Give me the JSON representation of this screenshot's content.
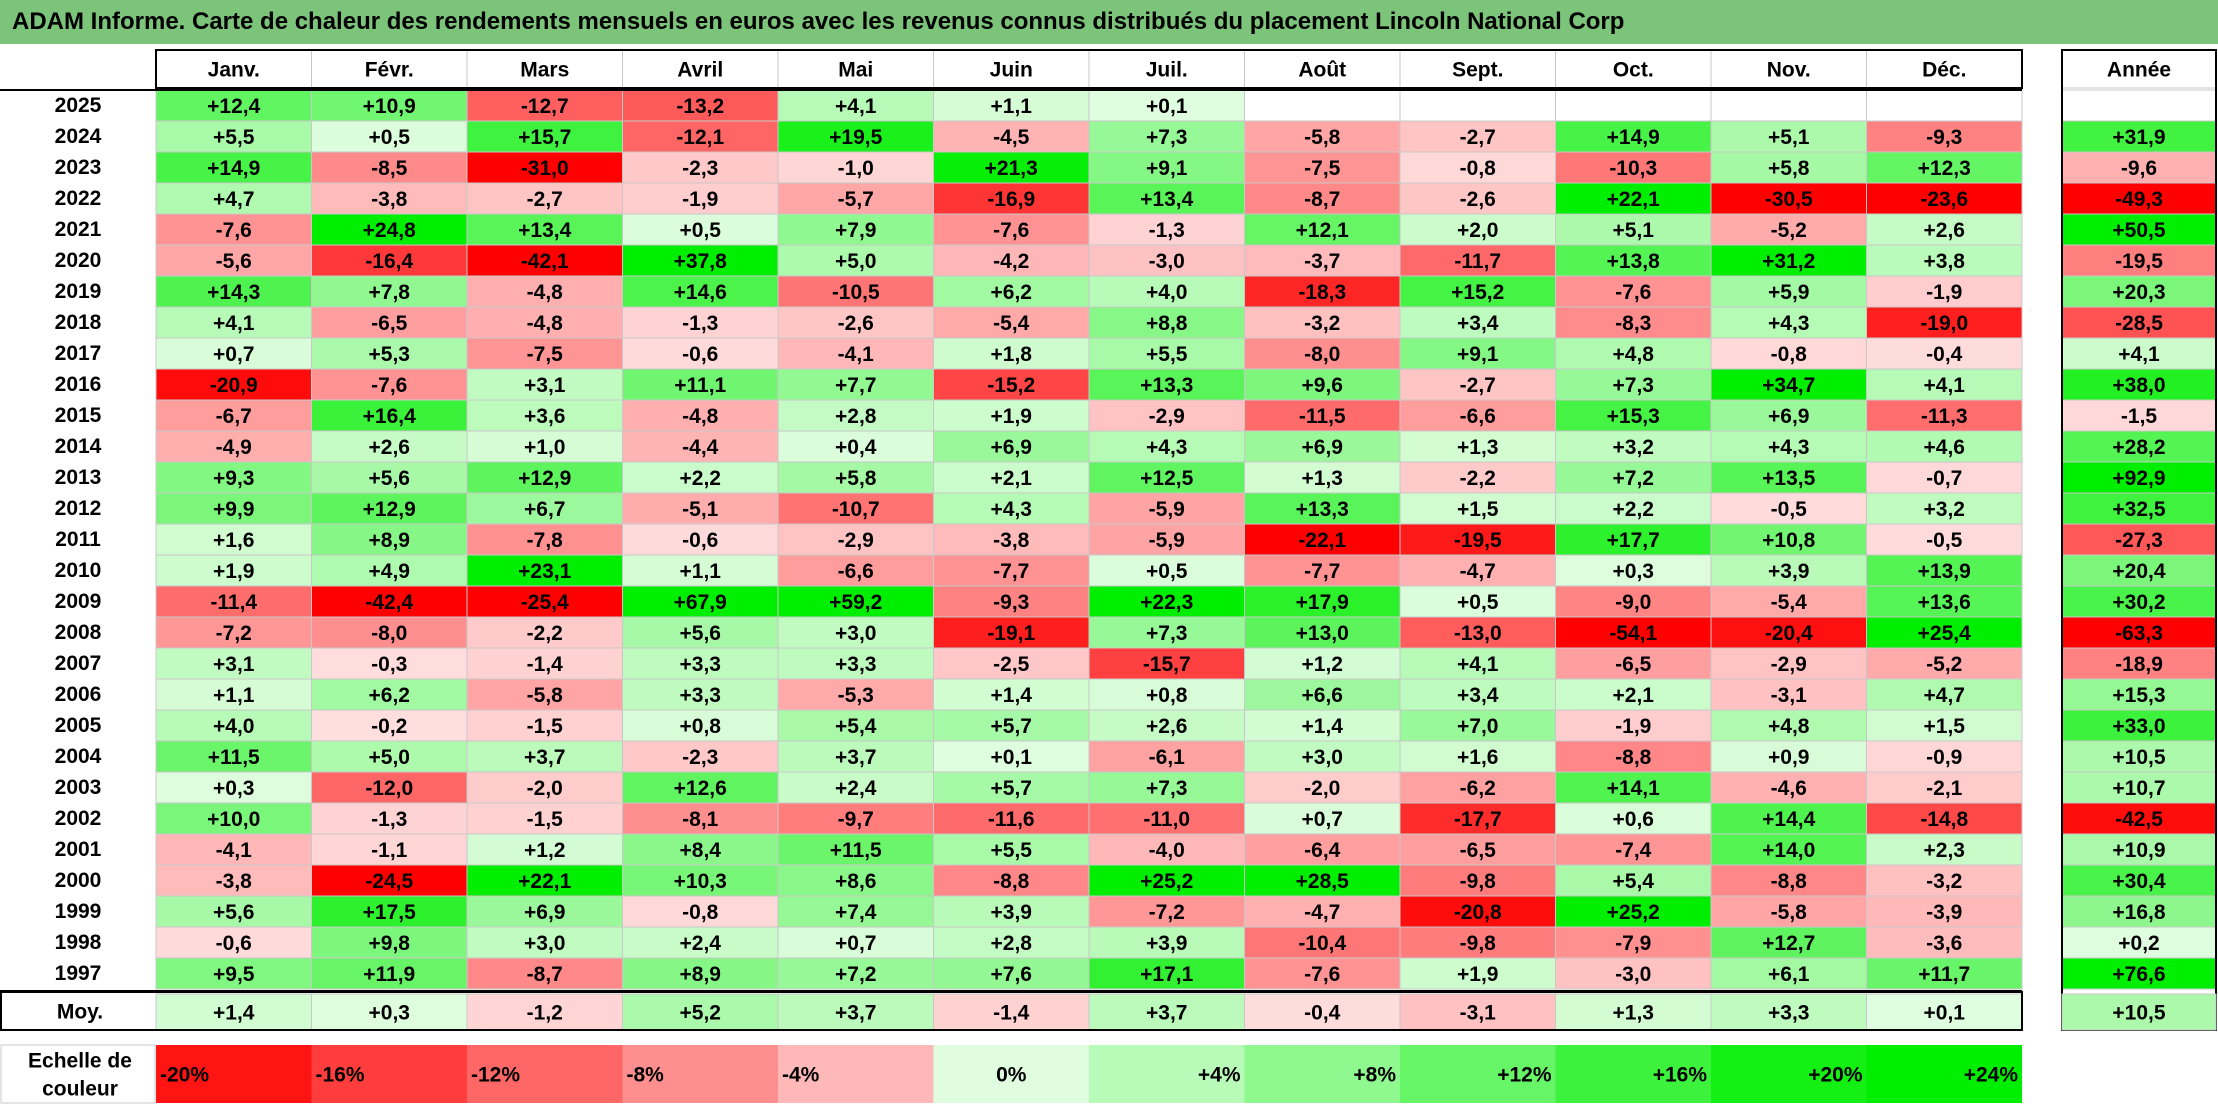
{
  "title": "ADAM Informe. Carte de chaleur des rendements mensuels en euros avec les revenus connus distribués du placement Lincoln National Corp",
  "chart_data": {
    "type": "heatmap",
    "months": [
      "Janv.",
      "Févr.",
      "Mars",
      "Avril",
      "Mai",
      "Juin",
      "Juil.",
      "Août",
      "Sept.",
      "Oct.",
      "Nov.",
      "Déc."
    ],
    "annual_header": "Année",
    "rows": [
      {
        "year": "2025",
        "values": [
          "+12,4",
          "+10,9",
          "-12,7",
          "-13,2",
          "+4,1",
          "+1,1",
          "+0,1",
          "",
          "",
          "",
          "",
          ""
        ],
        "annual": ""
      },
      {
        "year": "2024",
        "values": [
          "+5,5",
          "+0,5",
          "+15,7",
          "-12,1",
          "+19,5",
          "-4,5",
          "+7,3",
          "-5,8",
          "-2,7",
          "+14,9",
          "+5,1",
          "-9,3"
        ],
        "annual": "+31,9"
      },
      {
        "year": "2023",
        "values": [
          "+14,9",
          "-8,5",
          "-31,0",
          "-2,3",
          "-1,0",
          "+21,3",
          "+9,1",
          "-7,5",
          "-0,8",
          "-10,3",
          "+5,8",
          "+12,3"
        ],
        "annual": "-9,6"
      },
      {
        "year": "2022",
        "values": [
          "+4,7",
          "-3,8",
          "-2,7",
          "-1,9",
          "-5,7",
          "-16,9",
          "+13,4",
          "-8,7",
          "-2,6",
          "+22,1",
          "-30,5",
          "-23,6"
        ],
        "annual": "-49,3"
      },
      {
        "year": "2021",
        "values": [
          "-7,6",
          "+24,8",
          "+13,4",
          "+0,5",
          "+7,9",
          "-7,6",
          "-1,3",
          "+12,1",
          "+2,0",
          "+5,1",
          "-5,2",
          "+2,6"
        ],
        "annual": "+50,5"
      },
      {
        "year": "2020",
        "values": [
          "-5,6",
          "-16,4",
          "-42,1",
          "+37,8",
          "+5,0",
          "-4,2",
          "-3,0",
          "-3,7",
          "-11,7",
          "+13,8",
          "+31,2",
          "+3,8"
        ],
        "annual": "-19,5"
      },
      {
        "year": "2019",
        "values": [
          "+14,3",
          "+7,8",
          "-4,8",
          "+14,6",
          "-10,5",
          "+6,2",
          "+4,0",
          "-18,3",
          "+15,2",
          "-7,6",
          "+5,9",
          "-1,9"
        ],
        "annual": "+20,3"
      },
      {
        "year": "2018",
        "values": [
          "+4,1",
          "-6,5",
          "-4,8",
          "-1,3",
          "-2,6",
          "-5,4",
          "+8,8",
          "-3,2",
          "+3,4",
          "-8,3",
          "+4,3",
          "-19,0"
        ],
        "annual": "-28,5"
      },
      {
        "year": "2017",
        "values": [
          "+0,7",
          "+5,3",
          "-7,5",
          "-0,6",
          "-4,1",
          "+1,8",
          "+5,5",
          "-8,0",
          "+9,1",
          "+4,8",
          "-0,8",
          "-0,4"
        ],
        "annual": "+4,1"
      },
      {
        "year": "2016",
        "values": [
          "-20,9",
          "-7,6",
          "+3,1",
          "+11,1",
          "+7,7",
          "-15,2",
          "+13,3",
          "+9,6",
          "-2,7",
          "+7,3",
          "+34,7",
          "+4,1"
        ],
        "annual": "+38,0"
      },
      {
        "year": "2015",
        "values": [
          "-6,7",
          "+16,4",
          "+3,6",
          "-4,8",
          "+2,8",
          "+1,9",
          "-2,9",
          "-11,5",
          "-6,6",
          "+15,3",
          "+6,9",
          "-11,3"
        ],
        "annual": "-1,5"
      },
      {
        "year": "2014",
        "values": [
          "-4,9",
          "+2,6",
          "+1,0",
          "-4,4",
          "+0,4",
          "+6,9",
          "+4,3",
          "+6,9",
          "+1,3",
          "+3,2",
          "+4,3",
          "+4,6"
        ],
        "annual": "+28,2"
      },
      {
        "year": "2013",
        "values": [
          "+9,3",
          "+5,6",
          "+12,9",
          "+2,2",
          "+5,8",
          "+2,1",
          "+12,5",
          "+1,3",
          "-2,2",
          "+7,2",
          "+13,5",
          "-0,7"
        ],
        "annual": "+92,9"
      },
      {
        "year": "2012",
        "values": [
          "+9,9",
          "+12,9",
          "+6,7",
          "-5,1",
          "-10,7",
          "+4,3",
          "-5,9",
          "+13,3",
          "+1,5",
          "+2,2",
          "-0,5",
          "+3,2"
        ],
        "annual": "+32,5"
      },
      {
        "year": "2011",
        "values": [
          "+1,6",
          "+8,9",
          "-7,8",
          "-0,6",
          "-2,9",
          "-3,8",
          "-5,9",
          "-22,1",
          "-19,5",
          "+17,7",
          "+10,8",
          "-0,5"
        ],
        "annual": "-27,3"
      },
      {
        "year": "2010",
        "values": [
          "+1,9",
          "+4,9",
          "+23,1",
          "+1,1",
          "-6,6",
          "-7,7",
          "+0,5",
          "-7,7",
          "-4,7",
          "+0,3",
          "+3,9",
          "+13,9"
        ],
        "annual": "+20,4"
      },
      {
        "year": "2009",
        "values": [
          "-11,4",
          "-42,4",
          "-25,4",
          "+67,9",
          "+59,2",
          "-9,3",
          "+22,3",
          "+17,9",
          "+0,5",
          "-9,0",
          "-5,4",
          "+13,6"
        ],
        "annual": "+30,2"
      },
      {
        "year": "2008",
        "values": [
          "-7,2",
          "-8,0",
          "-2,2",
          "+5,6",
          "+3,0",
          "-19,1",
          "+7,3",
          "+13,0",
          "-13,0",
          "-54,1",
          "-20,4",
          "+25,4"
        ],
        "annual": "-63,3"
      },
      {
        "year": "2007",
        "values": [
          "+3,1",
          "-0,3",
          "-1,4",
          "+3,3",
          "+3,3",
          "-2,5",
          "-15,7",
          "+1,2",
          "+4,1",
          "-6,5",
          "-2,9",
          "-5,2"
        ],
        "annual": "-18,9"
      },
      {
        "year": "2006",
        "values": [
          "+1,1",
          "+6,2",
          "-5,8",
          "+3,3",
          "-5,3",
          "+1,4",
          "+0,8",
          "+6,6",
          "+3,4",
          "+2,1",
          "-3,1",
          "+4,7"
        ],
        "annual": "+15,3"
      },
      {
        "year": "2005",
        "values": [
          "+4,0",
          "-0,2",
          "-1,5",
          "+0,8",
          "+5,4",
          "+5,7",
          "+2,6",
          "+1,4",
          "+7,0",
          "-1,9",
          "+4,8",
          "+1,5"
        ],
        "annual": "+33,0"
      },
      {
        "year": "2004",
        "values": [
          "+11,5",
          "+5,0",
          "+3,7",
          "-2,3",
          "+3,7",
          "+0,1",
          "-6,1",
          "+3,0",
          "+1,6",
          "-8,8",
          "+0,9",
          "-0,9"
        ],
        "annual": "+10,5"
      },
      {
        "year": "2003",
        "values": [
          "+0,3",
          "-12,0",
          "-2,0",
          "+12,6",
          "+2,4",
          "+5,7",
          "+7,3",
          "-2,0",
          "-6,2",
          "+14,1",
          "-4,6",
          "-2,1"
        ],
        "annual": "+10,7"
      },
      {
        "year": "2002",
        "values": [
          "+10,0",
          "-1,3",
          "-1,5",
          "-8,1",
          "-9,7",
          "-11,6",
          "-11,0",
          "+0,7",
          "-17,7",
          "+0,6",
          "+14,4",
          "-14,8"
        ],
        "annual": "-42,5"
      },
      {
        "year": "2001",
        "values": [
          "-4,1",
          "-1,1",
          "+1,2",
          "+8,4",
          "+11,5",
          "+5,5",
          "-4,0",
          "-6,4",
          "-6,5",
          "-7,4",
          "+14,0",
          "+2,3"
        ],
        "annual": "+10,9"
      },
      {
        "year": "2000",
        "values": [
          "-3,8",
          "-24,5",
          "+22,1",
          "+10,3",
          "+8,6",
          "-8,8",
          "+25,2",
          "+28,5",
          "-9,8",
          "+5,4",
          "-8,8",
          "-3,2"
        ],
        "annual": "+30,4"
      },
      {
        "year": "1999",
        "values": [
          "+5,6",
          "+17,5",
          "+6,9",
          "-0,8",
          "+7,4",
          "+3,9",
          "-7,2",
          "-4,7",
          "-20,8",
          "+25,2",
          "-5,8",
          "-3,9"
        ],
        "annual": "+16,8"
      },
      {
        "year": "1998",
        "values": [
          "-0,6",
          "+9,8",
          "+3,0",
          "+2,4",
          "+0,7",
          "+2,8",
          "+3,9",
          "-10,4",
          "-9,8",
          "-7,9",
          "+12,7",
          "-3,6"
        ],
        "annual": "+0,2"
      },
      {
        "year": "1997",
        "values": [
          "+9,5",
          "+11,9",
          "-8,7",
          "+8,9",
          "+7,2",
          "+7,6",
          "+17,1",
          "-7,6",
          "+1,9",
          "-3,0",
          "+6,1",
          "+11,7"
        ],
        "annual": "+76,6"
      }
    ],
    "average": {
      "label": "Moy.",
      "values": [
        "+1,4",
        "+0,3",
        "-1,2",
        "+5,2",
        "+3,7",
        "-1,4",
        "+3,7",
        "-0,4",
        "-3,1",
        "+1,3",
        "+3,3",
        "+0,1"
      ],
      "annual": "+10,5"
    },
    "scale": {
      "label": [
        "Echelle de",
        "couleur"
      ],
      "steps": [
        "-20%",
        "-16%",
        "-12%",
        "-8%",
        "-4%",
        "0%",
        "+4%",
        "+8%",
        "+12%",
        "+16%",
        "+20%",
        "+24%"
      ]
    },
    "colors": {
      "negative_max": "#ff0000",
      "positive_max": "#00ee00",
      "neutral": "#ffffff",
      "title_bg": "#7cc47a"
    }
  }
}
